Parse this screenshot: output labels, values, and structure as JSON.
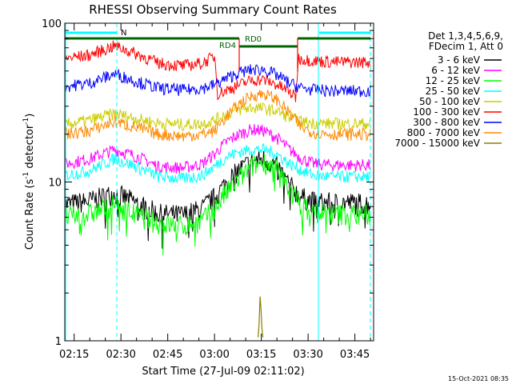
{
  "chart_data": {
    "type": "line",
    "title": "RHESSI Observing Summary Count Rates",
    "xlabel": "Start Time (27-Jul-09 02:11:02)",
    "ylabel_main": "Count Rate (s",
    "ylabel_sup1": "-1",
    "ylabel_mid": " detector",
    "ylabel_sup2": "-1",
    "ylabel_end": ")",
    "yscale": "log",
    "ylim": [
      1,
      100
    ],
    "xlim_minutes": [
      132,
      231
    ],
    "x_ticks": [
      {
        "m": 135,
        "label": "02:15"
      },
      {
        "m": 150,
        "label": "02:30"
      },
      {
        "m": 165,
        "label": "02:45"
      },
      {
        "m": 180,
        "label": "03:00"
      },
      {
        "m": 195,
        "label": "03:15"
      },
      {
        "m": 210,
        "label": "03:30"
      },
      {
        "m": 225,
        "label": "03:45"
      }
    ],
    "y_ticks": [
      {
        "v": 1,
        "label": "1"
      },
      {
        "v": 10,
        "label": "10"
      },
      {
        "v": 100,
        "label": "100"
      }
    ],
    "legend_header": [
      "Det 1,3,4,5,6,9,",
      "FDecim 1, Att 0"
    ],
    "series": [
      {
        "name": "3 - 6 keV",
        "color": "#000000",
        "x": [
          132,
          140,
          148,
          155,
          162,
          170,
          176,
          180,
          184,
          188,
          192,
          196,
          200,
          204,
          208,
          212,
          218,
          225,
          230
        ],
        "y": [
          7.2,
          7.6,
          8.5,
          7.4,
          6.3,
          6.2,
          6.8,
          8.0,
          10.0,
          12.0,
          13.5,
          14.0,
          12.5,
          9.5,
          8.0,
          7.5,
          7.4,
          7.4,
          7.3
        ]
      },
      {
        "name": "6 - 12 keV",
        "color": "#ff00ff",
        "x": [
          132,
          140,
          148,
          155,
          162,
          170,
          176,
          180,
          184,
          188,
          192,
          196,
          200,
          204,
          208,
          212,
          218,
          225,
          230
        ],
        "y": [
          13.0,
          14.0,
          16.0,
          14.5,
          12.5,
          12.3,
          13.0,
          15.0,
          18.0,
          20.0,
          21.5,
          21.0,
          19.0,
          16.0,
          14.0,
          13.0,
          12.8,
          12.8,
          12.8
        ]
      },
      {
        "name": "12 - 25 keV",
        "color": "#00ff00",
        "x": [
          132,
          140,
          148,
          155,
          162,
          170,
          176,
          180,
          184,
          188,
          192,
          196,
          200,
          204,
          208,
          212,
          218,
          225,
          230
        ],
        "y": [
          6.0,
          6.3,
          7.2,
          6.2,
          5.5,
          5.3,
          5.7,
          6.8,
          8.6,
          10.5,
          12.5,
          13.5,
          12.0,
          9.0,
          7.0,
          6.5,
          6.3,
          6.3,
          6.2
        ]
      },
      {
        "name": "25 - 50 keV",
        "color": "#00ffff",
        "x": [
          132,
          140,
          148,
          155,
          162,
          170,
          176,
          180,
          184,
          188,
          192,
          196,
          200,
          204,
          208,
          212,
          218,
          225,
          230
        ],
        "y": [
          11.0,
          11.8,
          14.0,
          12.5,
          10.8,
          10.5,
          11.0,
          12.5,
          14.5,
          15.5,
          16.0,
          16.0,
          15.0,
          13.0,
          11.8,
          11.0,
          10.8,
          10.8,
          10.8
        ]
      },
      {
        "name": "50 - 100 keV",
        "color": "#cccc00",
        "x": [
          132,
          140,
          148,
          155,
          162,
          170,
          176,
          180,
          184,
          188,
          192,
          196,
          200,
          204,
          208,
          212,
          218,
          225,
          230
        ],
        "y": [
          23.0,
          24.5,
          27.0,
          25.0,
          23.5,
          23.0,
          23.3,
          24.5,
          27.0,
          28.5,
          29.5,
          29.0,
          28.0,
          25.5,
          24.0,
          23.5,
          23.3,
          23.3,
          23.3
        ]
      },
      {
        "name": "100 - 300 keV",
        "color": "#ff0000",
        "x": [
          132,
          140,
          148,
          155,
          162,
          170,
          176,
          180,
          181,
          184,
          188,
          192,
          196,
          200,
          204,
          206,
          207,
          212,
          218,
          225,
          230
        ],
        "y": [
          60.0,
          63.0,
          72.0,
          64.0,
          56.0,
          54.0,
          56.0,
          62.0,
          36.0,
          38.0,
          41.0,
          44.0,
          44.0,
          41.0,
          37.0,
          34.0,
          60.0,
          58.0,
          57.0,
          57.0,
          57.0
        ]
      },
      {
        "name": "300 - 800 keV",
        "color": "#0000ff",
        "x": [
          132,
          140,
          148,
          155,
          162,
          170,
          176,
          180,
          184,
          188,
          192,
          196,
          200,
          204,
          208,
          212,
          218,
          225,
          230
        ],
        "y": [
          40.0,
          42.0,
          48.0,
          43.0,
          39.0,
          38.0,
          39.0,
          41.0,
          45.0,
          49.0,
          51.0,
          51.0,
          47.0,
          42.0,
          39.0,
          38.0,
          37.5,
          37.5,
          37.5
        ]
      },
      {
        "name": "800 - 7000 keV",
        "color": "#ff8800",
        "x": [
          132,
          140,
          148,
          155,
          162,
          170,
          176,
          180,
          184,
          188,
          192,
          196,
          200,
          204,
          208,
          212,
          218,
          225,
          230
        ],
        "y": [
          20.0,
          21.0,
          24.0,
          22.0,
          20.0,
          19.5,
          20.0,
          21.0,
          26.0,
          31.0,
          35.0,
          36.0,
          33.0,
          27.0,
          22.0,
          20.5,
          20.0,
          20.0,
          20.0
        ]
      },
      {
        "name": "7000 - 15000 keV",
        "color": "#8b7d00",
        "x": [
          194.0,
          194.3,
          194.6,
          194.9,
          195.2,
          195.5
        ],
        "y": [
          1.05,
          1.3,
          1.9,
          1.6,
          1.2,
          1.05
        ]
      }
    ],
    "attenuator_states": [
      {
        "label": "RD4",
        "m": 179.5
      },
      {
        "label": "RD0",
        "m": 182
      }
    ],
    "night_marker": {
      "label": "N"
    },
    "colors": {
      "axis": "#000000",
      "cyan_marker": "#00ffff",
      "green_state": "#006400",
      "red_state": "#ff0000"
    }
  },
  "footer": {
    "timestamp": "15-Oct-2021 08:35"
  }
}
